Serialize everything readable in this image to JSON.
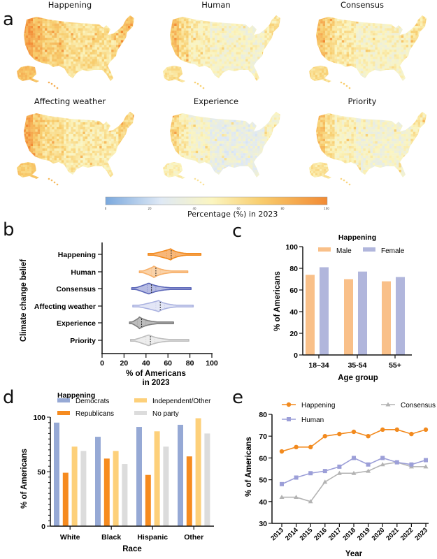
{
  "figure": {
    "panels": {
      "a": "a",
      "b": "b",
      "c": "c",
      "d": "d",
      "e": "e"
    }
  },
  "maps": {
    "items": [
      {
        "title": "Happening",
        "level": 0.66
      },
      {
        "title": "Human",
        "level": 0.5
      },
      {
        "title": "Consensus",
        "level": 0.52
      },
      {
        "title": "Affecting weather",
        "level": 0.6
      },
      {
        "title": "Experience",
        "level": 0.4
      },
      {
        "title": "Priority",
        "level": 0.47
      }
    ],
    "colorbar": {
      "label": "Percentage (%)  in 2023",
      "ticks": [
        "0",
        "20",
        "40",
        "60",
        "80",
        "100"
      ],
      "range": [
        0,
        100
      ],
      "colors": [
        "#7aa8dd",
        "#dfe9f5",
        "#fbf5c0",
        "#f8cd6e",
        "#f28a34"
      ]
    }
  },
  "chart_data": [
    {
      "id": "b",
      "type": "violin",
      "ylabel": "Climate change belief",
      "xlabel": "% of Americans",
      "xlabel2": "in 2023",
      "xlim": [
        0,
        100
      ],
      "xticks": [
        "0",
        "20",
        "40",
        "60",
        "80",
        "100"
      ],
      "series": [
        {
          "name": "Happening",
          "min": 42,
          "max": 90,
          "mode": 62,
          "median": 63,
          "color": "#f28a1e",
          "fill": "#f7b77a"
        },
        {
          "name": "Human",
          "min": 34,
          "max": 78,
          "mode": 47,
          "median": 49,
          "color": "#f7b069",
          "fill": "#fad2a8"
        },
        {
          "name": "Consensus",
          "min": 27,
          "max": 81,
          "mode": 42,
          "median": 45,
          "color": "#5b66b8",
          "fill": "#b7bce3"
        },
        {
          "name": "Affecting weather",
          "min": 28,
          "max": 83,
          "mode": 51,
          "median": 53,
          "color": "#aab2e0",
          "fill": "#e3e6f6"
        },
        {
          "name": "Experience",
          "min": 25,
          "max": 65,
          "mode": 34,
          "median": 36,
          "color": "#7e7e7e",
          "fill": "#bdbdbd"
        },
        {
          "name": "Priority",
          "min": 26,
          "max": 79,
          "mode": 42,
          "median": 44,
          "color": "#bdbdbd",
          "fill": "#ededed"
        }
      ]
    },
    {
      "id": "c",
      "type": "bar",
      "title": "Happening",
      "xlabel": "Age group",
      "ylabel": "% of Americans",
      "ylim": [
        0,
        100
      ],
      "yticks": [
        "0",
        "20",
        "40",
        "60",
        "80",
        "100"
      ],
      "categories": [
        "18–34",
        "35-54",
        "55+"
      ],
      "series": [
        {
          "name": "Male",
          "values": [
            74,
            70,
            68
          ],
          "color": "#f9c089"
        },
        {
          "name": "Female",
          "values": [
            81,
            77,
            72
          ],
          "color": "#b1b6dc"
        }
      ],
      "legend": "top"
    },
    {
      "id": "d",
      "type": "bar",
      "title": "Happening",
      "xlabel": "Race",
      "ylabel": "% of Americans",
      "ylim": [
        0,
        100
      ],
      "yticks": [
        "0",
        "50",
        "100"
      ],
      "categories": [
        "White",
        "Black",
        "Hispanic",
        "Other"
      ],
      "series": [
        {
          "name": "Democrats",
          "values": [
            95,
            82,
            91,
            93
          ],
          "color": "#96a9d5"
        },
        {
          "name": "Republicans",
          "values": [
            49,
            62,
            47,
            64
          ],
          "color": "#f68b1f"
        },
        {
          "name": "Independent/Other",
          "values": [
            73,
            69,
            87,
            99
          ],
          "color": "#fdd07a"
        },
        {
          "name": "No party",
          "values": [
            69,
            57,
            73,
            85
          ],
          "color": "#dcdcdc"
        }
      ],
      "legend": "top"
    },
    {
      "id": "e",
      "type": "line",
      "xlabel": "Year",
      "ylabel": "% of Americans",
      "ylim": [
        30,
        80
      ],
      "yticks": [
        "30",
        "40",
        "50",
        "60",
        "70",
        "80"
      ],
      "x": [
        "2013",
        "2014",
        "2015",
        "2016",
        "2017",
        "2018",
        "2019",
        "2020",
        "2021",
        "2022",
        "2023"
      ],
      "series": [
        {
          "name": "Happening",
          "marker": "circle",
          "color": "#f28a1e",
          "values": [
            63,
            65,
            65,
            70,
            71,
            72,
            70,
            73,
            73,
            71,
            73
          ]
        },
        {
          "name": "Human",
          "marker": "square",
          "color": "#9c9fd8",
          "values": [
            48,
            51,
            53,
            54,
            56,
            60,
            57,
            60,
            58,
            57,
            59
          ]
        },
        {
          "name": "Consensus",
          "marker": "triangle",
          "color": "#b3b3b3",
          "values": [
            42,
            42,
            40,
            49,
            53,
            53,
            54,
            57,
            58,
            56,
            56
          ]
        }
      ],
      "legend": "top"
    }
  ]
}
